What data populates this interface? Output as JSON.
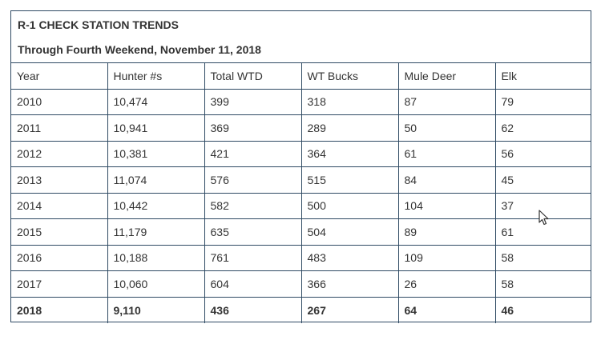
{
  "table": {
    "title": "R-1 CHECK STATION TRENDS",
    "subtitle": "Through Fourth Weekend, November 11, 2018",
    "headers": [
      "Year",
      "Hunter #s",
      "Total WTD",
      "WT Bucks",
      "Mule Deer",
      "Elk"
    ],
    "rows": [
      [
        "2010",
        "10,474",
        "399",
        "318",
        "87",
        "79"
      ],
      [
        "2011",
        "10,941",
        "369",
        "289",
        "50",
        "62"
      ],
      [
        "2012",
        "10,381",
        "421",
        "364",
        "61",
        "56"
      ],
      [
        "2013",
        "11,074",
        "576",
        "515",
        "84",
        "45"
      ],
      [
        "2014",
        "10,442",
        "582",
        "500",
        "104",
        "37"
      ],
      [
        "2015",
        "11,179",
        "635",
        "504",
        "89",
        "61"
      ],
      [
        "2016",
        "10,188",
        "761",
        "483",
        "109",
        "58"
      ],
      [
        "2017",
        "10,060",
        "604",
        "366",
        "26",
        "58"
      ],
      [
        "2018",
        "9,110",
        "436",
        "267",
        "64",
        "46"
      ]
    ]
  },
  "colors": {
    "border": "#2f4a63",
    "text": "#333333"
  },
  "cursor_icon": "mouse-pointer-icon"
}
